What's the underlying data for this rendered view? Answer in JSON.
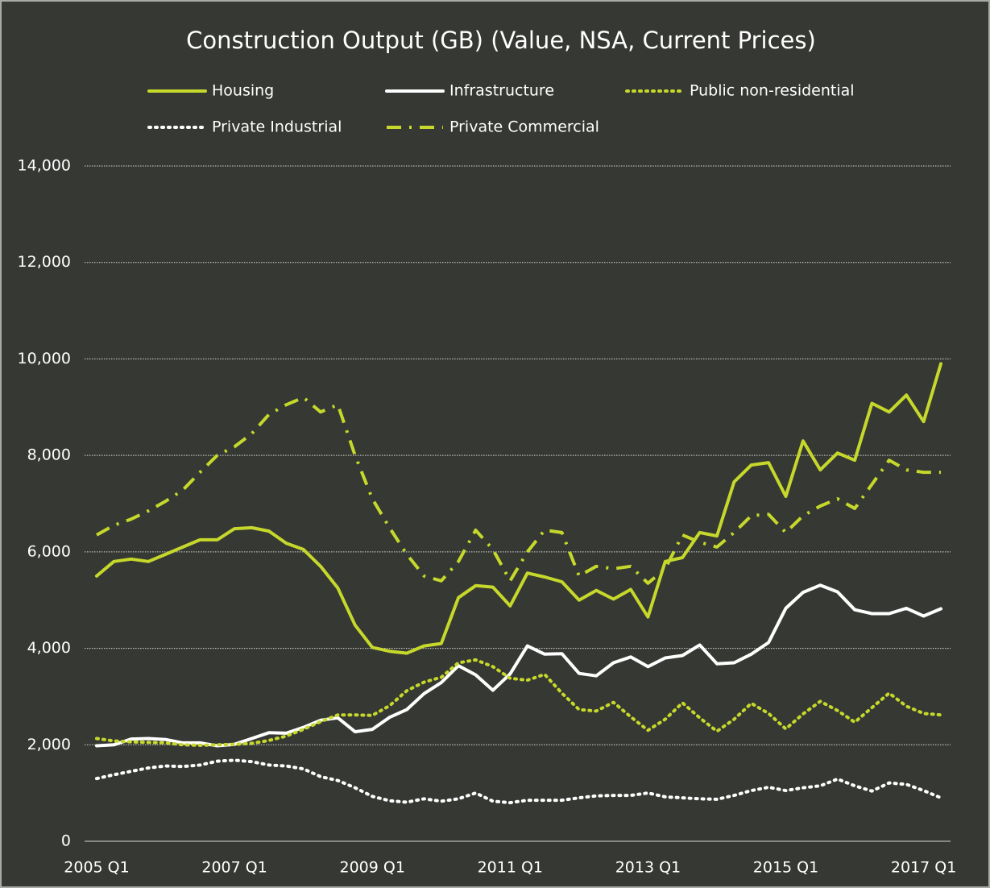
{
  "chart_data": {
    "type": "line",
    "title": "Construction Output (GB) (Value, NSA, Current Prices)",
    "categories": [
      "2005 Q1",
      null,
      null,
      null,
      null,
      null,
      null,
      null,
      "2007 Q1",
      null,
      null,
      null,
      null,
      null,
      null,
      null,
      "2009 Q1",
      null,
      null,
      null,
      null,
      null,
      null,
      null,
      "2011 Q1",
      null,
      null,
      null,
      null,
      null,
      null,
      null,
      "2013 Q1",
      null,
      null,
      null,
      null,
      null,
      null,
      null,
      "2015 Q1",
      null,
      null,
      null,
      null,
      null,
      null,
      null,
      "2017 Q1",
      null
    ],
    "series": [
      {
        "name": "Housing",
        "color": "#c5d82b",
        "dash": "solid",
        "values": [
          5500,
          5800,
          5850,
          5800,
          5950,
          6100,
          6250,
          6250,
          6480,
          6500,
          6430,
          6180,
          6050,
          5700,
          5250,
          4480,
          4020,
          3940,
          3900,
          4050,
          4100,
          5050,
          5300,
          5270,
          4880,
          5560,
          5480,
          5380,
          5000,
          5200,
          5020,
          5220,
          4650,
          5800,
          5880,
          6400,
          6330,
          7450,
          7800,
          7850,
          7150,
          8300,
          7700,
          8050,
          7900,
          9080,
          8900,
          9250,
          8700,
          9900
        ]
      },
      {
        "name": "Infrastructure",
        "color": "#ffffff",
        "dash": "solid",
        "values": [
          1980,
          2000,
          2120,
          2130,
          2110,
          2040,
          2040,
          1980,
          2010,
          2130,
          2250,
          2240,
          2360,
          2510,
          2560,
          2270,
          2320,
          2570,
          2730,
          3060,
          3290,
          3640,
          3450,
          3130,
          3470,
          4050,
          3880,
          3890,
          3480,
          3430,
          3700,
          3820,
          3620,
          3800,
          3850,
          4070,
          3680,
          3700,
          3880,
          4120,
          4830,
          5160,
          5310,
          5170,
          4800,
          4720,
          4720,
          4830,
          4670,
          4820
        ]
      },
      {
        "name": "Public non-residential",
        "color": "#c5d82b",
        "dash": "dotted",
        "values": [
          2130,
          2080,
          2060,
          2050,
          2040,
          2000,
          1990,
          2000,
          2010,
          2030,
          2090,
          2180,
          2320,
          2480,
          2620,
          2620,
          2610,
          2810,
          3120,
          3300,
          3400,
          3700,
          3760,
          3620,
          3380,
          3340,
          3460,
          3070,
          2730,
          2700,
          2880,
          2580,
          2300,
          2530,
          2870,
          2560,
          2280,
          2530,
          2860,
          2650,
          2330,
          2640,
          2900,
          2710,
          2470,
          2770,
          3070,
          2800,
          2650,
          2620
        ]
      },
      {
        "name": "Private Industrial",
        "color": "#ffffff",
        "dash": "dotted",
        "values": [
          1300,
          1380,
          1450,
          1520,
          1560,
          1550,
          1580,
          1660,
          1680,
          1650,
          1580,
          1560,
          1500,
          1340,
          1260,
          1110,
          930,
          840,
          810,
          880,
          830,
          880,
          1000,
          830,
          800,
          850,
          850,
          850,
          900,
          940,
          950,
          950,
          1000,
          920,
          900,
          880,
          870,
          950,
          1050,
          1120,
          1050,
          1110,
          1150,
          1290,
          1150,
          1040,
          1210,
          1180,
          1050,
          900
        ]
      },
      {
        "name": "Private Commercial",
        "color": "#c5d82b",
        "dash": "dashdot",
        "values": [
          6350,
          6550,
          6680,
          6850,
          7050,
          7280,
          7650,
          8000,
          8180,
          8450,
          8850,
          9050,
          9200,
          8900,
          9050,
          8000,
          7100,
          6500,
          5950,
          5500,
          5400,
          5800,
          6450,
          6050,
          5400,
          6000,
          6450,
          6400,
          5500,
          5700,
          5650,
          5700,
          5350,
          5650,
          6350,
          6200,
          6100,
          6400,
          6750,
          6780,
          6400,
          6750,
          6950,
          7100,
          6900,
          7400,
          7900,
          7700,
          7650,
          7650
        ]
      }
    ],
    "ylim": [
      0,
      14000
    ],
    "yticks": [
      0,
      {
        "value": 2000,
        "label": "2,000"
      },
      {
        "value": 4000,
        "label": "4,000"
      },
      {
        "value": 6000,
        "label": "6,000"
      },
      {
        "value": 8000,
        "label": "8,000"
      },
      {
        "value": 10000,
        "label": "10,000"
      },
      {
        "value": 12000,
        "label": "12,000"
      },
      {
        "value": 14000,
        "label": "14,000"
      }
    ],
    "grid": true
  }
}
